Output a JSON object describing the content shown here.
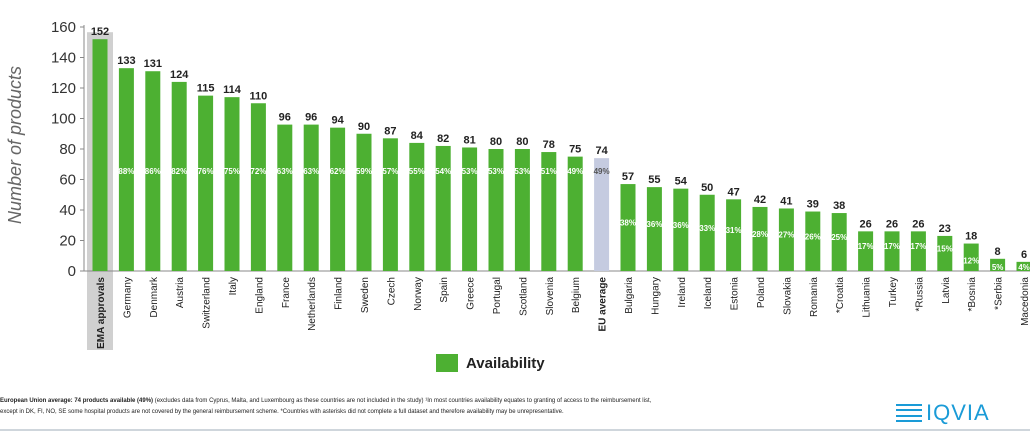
{
  "chart_data": {
    "type": "bar",
    "ylabel": "Number of products",
    "ylim": [
      0,
      160
    ],
    "yticks": [
      "0",
      "20",
      "40",
      "60",
      "80",
      "100",
      "120",
      "140",
      "160"
    ],
    "categories": [
      "EMA approvals",
      "Germany",
      "Denmark",
      "Austria",
      "Switzerland",
      "Italy",
      "England",
      "France",
      "Netherlands",
      "Finland",
      "Sweden",
      "Czech",
      "Norway",
      "Spain",
      "Greece",
      "Portugal",
      "Scotland",
      "Slovenia",
      "Belgium",
      "EU average",
      "Bulgaria",
      "Hungary",
      "Ireland",
      "Iceland",
      "Estonia",
      "Poland",
      "Slovakia",
      "Romania",
      "*Croatia",
      "Lithuania",
      "Turkey",
      "*Russia",
      "Latvia",
      "*Bosnia",
      "*Serbia",
      "Macedonia"
    ],
    "values": [
      152,
      133,
      131,
      124,
      115,
      114,
      110,
      96,
      96,
      94,
      90,
      87,
      84,
      82,
      81,
      80,
      80,
      78,
      75,
      74,
      57,
      55,
      54,
      50,
      47,
      42,
      41,
      39,
      38,
      26,
      26,
      26,
      23,
      18,
      8,
      6
    ],
    "value_labels": [
      "152",
      "133",
      "131",
      "124",
      "115",
      "114",
      "110",
      "96",
      "96",
      "94",
      "90",
      "87",
      "84",
      "82",
      "81",
      "80",
      "80",
      "78",
      "75",
      "74",
      "57",
      "55",
      "54",
      "50",
      "47",
      "42",
      "41",
      "39",
      "38",
      "26",
      "26",
      "26",
      "23",
      "18",
      "8",
      "6"
    ],
    "percent_labels": [
      "",
      "88%",
      "86%",
      "82%",
      "76%",
      "75%",
      "72%",
      "63%",
      "63%",
      "62%",
      "59%",
      "57%",
      "55%",
      "54%",
      "53%",
      "53%",
      "53%",
      "51%",
      "49%",
      "49%",
      "38%",
      "36%",
      "36%",
      "33%",
      "31%",
      "28%",
      "27%",
      "26%",
      "25%",
      "17%",
      "17%",
      "17%",
      "15%",
      "12%",
      "5%",
      "4%"
    ],
    "legend": [
      "Availability"
    ],
    "legend_position": "bottom",
    "colors": {
      "bar": "#4db032",
      "eu_bar": "#c5cbe0",
      "ema_bg": "#d0d0d0"
    },
    "grid": false
  },
  "footnotes": {
    "line1_bold": "European Union average: 74 products available (49%)",
    "line1_rest": " (excludes data from Cyprus, Malta, and Luxembourg as these countries are not included in the study) ¹In most countries availability equates to granting of access to the reimbursement list,",
    "line2": "except in DK, FI, NO, SE some hospital products are not covered by the general reimbursement scheme. *Countries with asterisks did not complete a full dataset and therefore availability may be unrepresentative."
  },
  "logo": {
    "text": "IQVIA",
    "icon": "iqvia-bars-icon"
  }
}
